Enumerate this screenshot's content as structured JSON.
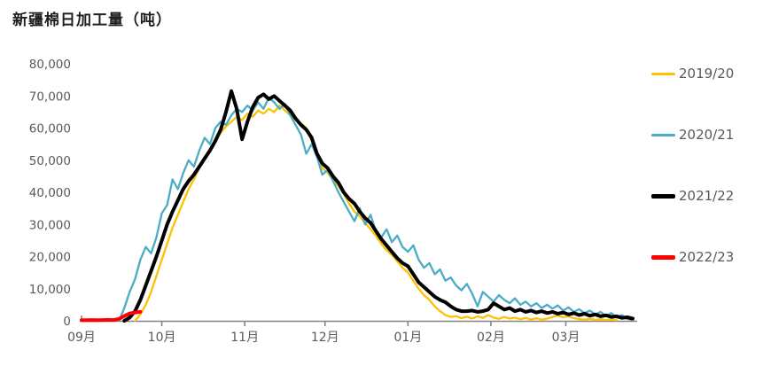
{
  "title": "新疆棉日加工量（吨）",
  "colors": {
    "background": "#FFFFFF",
    "title_text": "#1F1F1F",
    "tick_text": "#595959",
    "axis_line": "#848484",
    "series_2019_20": "#FFC000",
    "series_2020_21": "#4BACC6",
    "series_2021_22": "#000000",
    "series_2022_23": "#FF0000"
  },
  "chart_data": {
    "type": "line",
    "title": "新疆棉日加工量（吨）",
    "xlabel": "",
    "ylabel": "",
    "grid": false,
    "legend_position": "right",
    "x_axis": {
      "unit": "days_from_sep1",
      "range_days": [
        0,
        207
      ],
      "tick_days": [
        0,
        30,
        61,
        91,
        122,
        153,
        181
      ],
      "tick_labels": [
        "09月",
        "10月",
        "11月",
        "12月",
        "01月",
        "02月",
        "03月"
      ]
    },
    "y_axis": {
      "range": [
        0,
        80000
      ],
      "ticks": [
        0,
        10000,
        20000,
        30000,
        40000,
        50000,
        60000,
        70000,
        80000
      ],
      "tick_labels": [
        "0",
        "10,000",
        "20,000",
        "30,000",
        "40,000",
        "50,000",
        "60,000",
        "70,000",
        "80,000"
      ]
    },
    "series": [
      {
        "name": "2019/20",
        "color": "#FFC000",
        "line_width": 2.3,
        "swatch_thickness": 3,
        "x_start_day": 20,
        "x_step_days": 2,
        "values": [
          0,
          2000,
          5000,
          9000,
          14000,
          19000,
          24000,
          29000,
          33000,
          37000,
          41000,
          44000,
          47500,
          50500,
          53500,
          56000,
          58500,
          60500,
          62000,
          63500,
          62500,
          64500,
          63500,
          65500,
          64500,
          66000,
          65000,
          67000,
          65500,
          64000,
          62500,
          61500,
          60000,
          56000,
          52000,
          47500,
          46000,
          44000,
          42000,
          39500,
          36500,
          34000,
          32500,
          30500,
          28500,
          26500,
          24000,
          22000,
          20500,
          18500,
          16500,
          15000,
          12500,
          10000,
          8000,
          6500,
          4500,
          3000,
          1800,
          1200,
          1500,
          800,
          1300,
          700,
          1400,
          900,
          1800,
          1000,
          600,
          1200,
          700,
          1000,
          500,
          900,
          400,
          800,
          400,
          700,
          1200,
          1600,
          1100,
          1400,
          800,
          500,
          400,
          600,
          300,
          500,
          250,
          400,
          200
        ]
      },
      {
        "name": "2020/21",
        "color": "#4BACC6",
        "line_width": 2.3,
        "swatch_thickness": 3,
        "x_start_day": 14,
        "x_step_days": 2,
        "values": [
          0,
          4000,
          9000,
          13000,
          19000,
          23000,
          21000,
          26000,
          33500,
          36000,
          44000,
          41000,
          46000,
          50000,
          48000,
          53000,
          57000,
          55000,
          60000,
          62000,
          61000,
          64000,
          66000,
          65000,
          67000,
          65500,
          68000,
          66000,
          69500,
          68000,
          66000,
          67500,
          64000,
          61000,
          58000,
          52000,
          55000,
          51000,
          45500,
          47000,
          43500,
          40000,
          37000,
          34000,
          31000,
          35000,
          30000,
          33000,
          28000,
          26000,
          28500,
          24500,
          26500,
          23000,
          21500,
          23500,
          19000,
          16500,
          18000,
          14500,
          16000,
          12500,
          13500,
          11000,
          9500,
          11500,
          8500,
          4500,
          9000,
          7500,
          6000,
          8000,
          6500,
          5500,
          7000,
          5000,
          6000,
          4500,
          5500,
          4000,
          5000,
          3800,
          4800,
          3200,
          4200,
          2800,
          3600,
          2400,
          3200,
          2000,
          2800,
          1500,
          2400,
          1000,
          1800,
          600,
          400
        ]
      },
      {
        "name": "2021/22",
        "color": "#000000",
        "line_width": 4,
        "swatch_thickness": 5,
        "x_start_day": 16,
        "x_step_days": 2,
        "values": [
          0,
          1000,
          3000,
          6500,
          11000,
          15500,
          20000,
          25000,
          30000,
          34000,
          37500,
          41000,
          43500,
          45500,
          48000,
          50500,
          53000,
          56000,
          59500,
          65000,
          71500,
          66000,
          56500,
          62000,
          66500,
          69500,
          70500,
          69000,
          70000,
          68500,
          67000,
          65500,
          63000,
          61000,
          59500,
          57000,
          52000,
          49000,
          47500,
          45000,
          43000,
          40000,
          38000,
          36500,
          34000,
          32000,
          30500,
          28000,
          25500,
          23500,
          21500,
          19500,
          18000,
          17000,
          14500,
          12000,
          10500,
          9000,
          7500,
          6500,
          5800,
          4500,
          3500,
          3000,
          3000,
          3200,
          2800,
          3000,
          3500,
          5500,
          4500,
          3500,
          4000,
          3000,
          3500,
          2800,
          3200,
          2600,
          3000,
          2400,
          2800,
          2200,
          2600,
          2000,
          2400,
          1800,
          2200,
          1600,
          2000,
          1400,
          1700,
          1200,
          1400,
          900,
          1100,
          700
        ]
      },
      {
        "name": "2022/23",
        "color": "#FF0000",
        "line_width": 4,
        "swatch_thickness": 5,
        "x_start_day": 0,
        "x_step_days": 2,
        "values": [
          200,
          200,
          250,
          200,
          250,
          300,
          250,
          600,
          1500,
          2300,
          2600,
          2800
        ]
      }
    ]
  }
}
